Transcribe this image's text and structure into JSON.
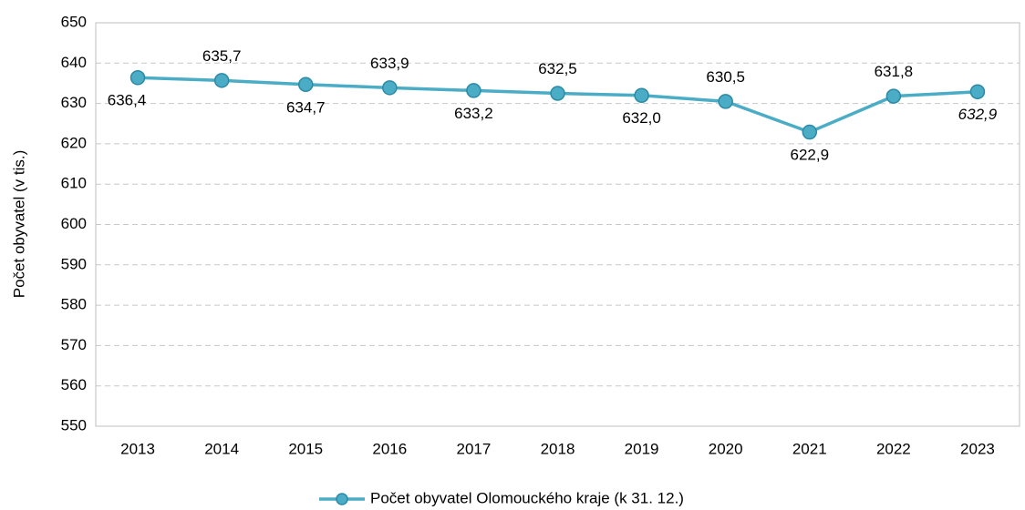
{
  "chart_data": {
    "type": "line",
    "y_label": "Počet obyvatel (v tis.)",
    "categories": [
      "2013",
      "2014",
      "2015",
      "2016",
      "2017",
      "2018",
      "2019",
      "2020",
      "2021",
      "2022",
      "2023"
    ],
    "series": [
      {
        "name": "Počet obyvatel Olomouckého kraje (k 31. 12.)",
        "color": "#4bacc6",
        "values": [
          636.4,
          635.7,
          634.7,
          633.9,
          633.2,
          632.5,
          632.0,
          630.5,
          622.9,
          631.8,
          632.9
        ],
        "value_labels": [
          "636,4",
          "635,7",
          "634,7",
          "633,9",
          "633,2",
          "632,5",
          "632,0",
          "630,5",
          "622,9",
          "631,8",
          "632,9"
        ]
      }
    ],
    "ylim": [
      550,
      650
    ],
    "yticks": [
      550,
      560,
      570,
      580,
      590,
      600,
      610,
      620,
      630,
      640,
      650
    ],
    "grid": true,
    "legend": "bottom"
  }
}
